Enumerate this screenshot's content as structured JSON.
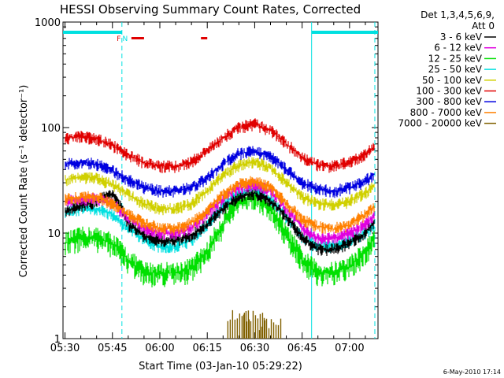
{
  "chart_data": {
    "type": "line",
    "title": "HESSI Observing Summary Count Rates, Corrected",
    "xlabel": "Start Time (03-Jan-10 05:29:22)",
    "ylabel": "Corrected Count Rate (s⁻¹ detector⁻¹)",
    "yscale": "log",
    "ylim": [
      1,
      1000
    ],
    "xlim": [
      "05:29:22",
      "07:09:00"
    ],
    "x_ticks": [
      "05:30",
      "05:45",
      "06:00",
      "06:15",
      "06:30",
      "06:45",
      "07:00"
    ],
    "y_ticks": [
      "1",
      "10",
      "100",
      "1000"
    ],
    "grid": false,
    "legend_position": "right-outside",
    "legend_header": [
      "Det 1,3,4,5,6,9,",
      "Att 0"
    ],
    "x": [
      "05:30",
      "05:35",
      "05:40",
      "05:45",
      "05:50",
      "05:55",
      "06:00",
      "06:05",
      "06:10",
      "06:15",
      "06:20",
      "06:25",
      "06:30",
      "06:35",
      "06:40",
      "06:45",
      "06:50",
      "06:55",
      "07:00",
      "07:05",
      "07:08"
    ],
    "series": [
      {
        "name": "3 - 6 keV",
        "color": "#000000",
        "values": [
          16,
          18,
          20,
          24,
          12,
          9.5,
          8.5,
          8.5,
          9.5,
          12,
          17,
          22,
          24,
          20,
          14,
          9,
          7,
          7,
          8,
          10,
          13
        ]
      },
      {
        "name": "6 - 12 keV",
        "color": "#e000e0",
        "values": [
          20,
          21,
          21,
          19,
          14,
          11,
          10,
          10,
          11,
          15,
          21,
          27,
          29,
          25,
          17,
          11,
          9,
          9,
          10,
          12,
          15
        ]
      },
      {
        "name": "12 - 25 keV",
        "color": "#00e000",
        "values": [
          8,
          9,
          9,
          8,
          5.5,
          4.2,
          4.2,
          4.2,
          4.6,
          6.5,
          12,
          20,
          23,
          17,
          9.5,
          5.5,
          4.2,
          4.2,
          4.8,
          6.5,
          9
        ]
      },
      {
        "name": "25 - 50 keV",
        "color": "#00e0e0",
        "values": [
          16,
          17,
          17,
          15,
          11,
          8.5,
          7.5,
          7.5,
          8.5,
          12,
          18,
          24,
          26,
          21,
          14,
          9,
          7.5,
          7.5,
          8.5,
          10,
          12
        ]
      },
      {
        "name": "50 - 100 keV",
        "color": "#d0d000",
        "values": [
          32,
          34,
          33,
          29,
          23,
          19,
          17,
          17,
          19,
          25,
          35,
          44,
          48,
          41,
          30,
          22,
          19,
          18.5,
          20,
          24,
          28
        ]
      },
      {
        "name": "100 - 300 keV",
        "color": "#e00000",
        "values": [
          80,
          82,
          78,
          68,
          55,
          46,
          43,
          43,
          47,
          60,
          80,
          100,
          108,
          94,
          70,
          52,
          44,
          43,
          47,
          56,
          65
        ]
      },
      {
        "name": "300 - 800 keV",
        "color": "#0000e0",
        "values": [
          45,
          47,
          45,
          39,
          32,
          27,
          25,
          25,
          27,
          33,
          45,
          57,
          60,
          53,
          40,
          30,
          26,
          25,
          27,
          31,
          37
        ]
      },
      {
        "name": "800 - 7000 keV",
        "color": "#ff8000",
        "values": [
          21,
          22,
          22,
          19,
          15,
          12.5,
          11,
          11,
          12.5,
          16,
          23,
          29,
          31,
          27,
          19,
          13.5,
          11.5,
          11,
          12,
          15,
          18
        ]
      },
      {
        "name": "7000 - 20000 keV",
        "color": "#806000",
        "values": [
          0,
          0,
          0,
          0,
          0,
          0,
          0,
          0,
          0,
          0,
          0,
          1.9,
          1.9,
          1.6,
          0,
          0,
          0,
          0,
          0,
          0,
          0
        ]
      }
    ],
    "bars": {
      "night": {
        "color": "#00e0e0",
        "spans": [
          [
            "05:29:22",
            "05:48"
          ],
          [
            "06:48",
            "07:09:00"
          ]
        ]
      },
      "flare": {
        "color": "#e00000",
        "spans": [
          [
            "05:51",
            "05:55"
          ],
          [
            "06:13",
            "06:15"
          ]
        ]
      },
      "labels": [
        {
          "text": "F",
          "at": "05:47",
          "color": "#e00000"
        },
        {
          "text": "N",
          "at": "05:49",
          "color": "#00e0e0"
        }
      ]
    },
    "vlines": [
      {
        "at": "05:48",
        "style": "dashed",
        "color": "#00e0e0"
      },
      {
        "at": "06:48",
        "style": "solid",
        "color": "#00e0e0"
      },
      {
        "at": "07:08",
        "style": "dashed",
        "color": "#00e0e0"
      }
    ],
    "timestamp": "6-May-2010 17:14"
  }
}
